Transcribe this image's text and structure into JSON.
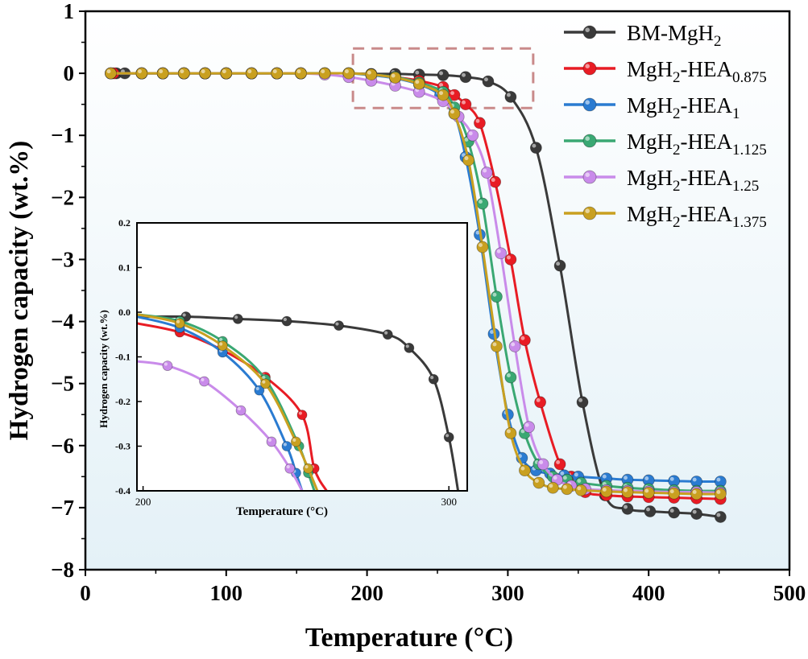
{
  "chart_data": [
    {
      "type": "line",
      "title": "",
      "xlabel": "Temperature (°C)",
      "ylabel": "Hydrogen capacity (wt.%)",
      "xlim": [
        0,
        500
      ],
      "ylim": [
        -8,
        1
      ],
      "xticks": [
        "0",
        "100",
        "200",
        "300",
        "400",
        "500"
      ],
      "yticks": [
        "1",
        "0",
        "−1",
        "−2",
        "−3",
        "−4",
        "−5",
        "−6",
        "−7",
        "−8"
      ],
      "grid": false,
      "legend_position": "top-right",
      "background_gradient": [
        "#ffffff",
        "#e4f1f7"
      ],
      "series": [
        {
          "name": "BM-MgH",
          "sub": "2",
          "name_tail": "",
          "tail_sub": "",
          "color": "#3a3a3a",
          "x": [
            22,
            28,
            40,
            55,
            70,
            85,
            100,
            118,
            136,
            153,
            170,
            187,
            203,
            220,
            237,
            254,
            270,
            286,
            302,
            320,
            337,
            353,
            369,
            385,
            401,
            418,
            434,
            451
          ],
          "y": [
            0,
            0,
            0,
            0,
            0,
            0,
            0,
            0,
            0,
            0,
            0,
            0,
            -0.01,
            -0.01,
            -0.02,
            -0.03,
            -0.06,
            -0.13,
            -0.38,
            -1.2,
            -3.1,
            -5.3,
            -6.8,
            -7.02,
            -7.06,
            -7.08,
            -7.1,
            -7.15
          ]
        },
        {
          "name": "MgH",
          "sub": "2",
          "name_tail": "-HEA",
          "tail_sub": "0.875",
          "color": "#e81c24",
          "x": [
            20,
            40,
            55,
            70,
            85,
            100,
            118,
            136,
            153,
            170,
            187,
            203,
            220,
            237,
            254,
            262,
            270,
            280,
            291,
            302,
            312,
            323,
            337,
            345,
            355,
            370,
            385,
            400,
            418,
            434,
            451
          ],
          "y": [
            0,
            0,
            0,
            0,
            0,
            0,
            0,
            0,
            0,
            0,
            0,
            -0.02,
            -0.06,
            -0.12,
            -0.22,
            -0.35,
            -0.5,
            -0.8,
            -1.75,
            -3.0,
            -4.3,
            -5.3,
            -6.3,
            -6.5,
            -6.75,
            -6.8,
            -6.82,
            -6.83,
            -6.84,
            -6.85,
            -6.86
          ]
        },
        {
          "name": "MgH",
          "sub": "2",
          "name_tail": "-HEA",
          "tail_sub": "1",
          "color": "#2a7bd1",
          "x": [
            18,
            40,
            55,
            70,
            85,
            100,
            118,
            136,
            153,
            170,
            187,
            203,
            220,
            237,
            252,
            262,
            270,
            280,
            290,
            300,
            310,
            320,
            330,
            340,
            350,
            370,
            385,
            400,
            418,
            434,
            451
          ],
          "y": [
            0,
            0,
            0,
            0,
            0,
            0,
            0,
            0,
            0,
            0,
            0,
            -0.03,
            -0.08,
            -0.18,
            -0.35,
            -0.65,
            -1.35,
            -2.6,
            -4.2,
            -5.5,
            -6.2,
            -6.4,
            -6.45,
            -6.48,
            -6.5,
            -6.53,
            -6.55,
            -6.56,
            -6.57,
            -6.58,
            -6.58
          ]
        },
        {
          "name": "MgH",
          "sub": "2",
          "name_tail": "-HEA",
          "tail_sub": "1.125",
          "color": "#3aa873",
          "x": [
            18,
            40,
            55,
            70,
            85,
            100,
            118,
            136,
            153,
            170,
            187,
            203,
            220,
            237,
            254,
            262,
            272,
            282,
            292,
            302,
            312,
            322,
            332,
            342,
            352,
            370,
            385,
            400,
            418,
            434,
            451
          ],
          "y": [
            0,
            0,
            0,
            0,
            0,
            0,
            0,
            0,
            0,
            0,
            0,
            -0.02,
            -0.06,
            -0.15,
            -0.3,
            -0.55,
            -1.1,
            -2.1,
            -3.6,
            -4.9,
            -5.8,
            -6.3,
            -6.5,
            -6.55,
            -6.6,
            -6.65,
            -6.68,
            -6.7,
            -6.72,
            -6.73,
            -6.73
          ]
        },
        {
          "name": "MgH",
          "sub": "2",
          "name_tail": "-HEA",
          "tail_sub": "1.25",
          "color": "#c98bea",
          "x": [
            18,
            40,
            55,
            70,
            85,
            100,
            118,
            136,
            153,
            170,
            187,
            203,
            220,
            237,
            254,
            265,
            275,
            285,
            295,
            305,
            315,
            325,
            335,
            345,
            355,
            370,
            385,
            400,
            418,
            434,
            451
          ],
          "y": [
            0,
            0,
            0,
            0,
            0,
            0,
            0,
            0,
            0,
            -0.02,
            -0.06,
            -0.12,
            -0.2,
            -0.3,
            -0.45,
            -0.7,
            -1.0,
            -1.6,
            -2.9,
            -4.4,
            -5.7,
            -6.3,
            -6.55,
            -6.65,
            -6.7,
            -6.72,
            -6.73,
            -6.74,
            -6.75,
            -6.75,
            -6.76
          ]
        },
        {
          "name": "MgH",
          "sub": "2",
          "name_tail": "-HEA",
          "tail_sub": "1.375",
          "color": "#c9a020",
          "x": [
            18,
            40,
            55,
            70,
            85,
            100,
            118,
            136,
            153,
            170,
            187,
            203,
            220,
            237,
            254,
            262,
            272,
            282,
            292,
            302,
            312,
            322,
            332,
            342,
            352,
            370,
            385,
            400,
            418,
            434,
            451
          ],
          "y": [
            0,
            0,
            0,
            0,
            0,
            0,
            0,
            0,
            0,
            0,
            0,
            -0.02,
            -0.07,
            -0.17,
            -0.35,
            -0.65,
            -1.4,
            -2.8,
            -4.4,
            -5.8,
            -6.4,
            -6.6,
            -6.68,
            -6.7,
            -6.72,
            -6.74,
            -6.75,
            -6.76,
            -6.77,
            -6.78,
            -6.78
          ]
        }
      ]
    },
    {
      "type": "line",
      "title": "",
      "xlabel": "Temperature (°C)",
      "ylabel": "Hydrogen capacity (wt.%)",
      "xlim": [
        198,
        306
      ],
      "ylim": [
        -0.4,
        0.2
      ],
      "xticks": [
        "200",
        "300"
      ],
      "yticks": [
        "0.2",
        "0.1",
        "0.0",
        "-0.1",
        "-0.2",
        "-0.3",
        "-0.4"
      ],
      "grid": false,
      "series": [
        {
          "name": "BM-MgH2",
          "color": "#3a3a3a",
          "x": [
            198,
            214,
            231,
            247,
            264,
            280,
            287,
            295,
            300,
            303
          ],
          "y": [
            -0.01,
            -0.01,
            -0.015,
            -0.02,
            -0.03,
            -0.05,
            -0.08,
            -0.15,
            -0.28,
            -0.4
          ]
        },
        {
          "name": "MgH2-HEA0.875",
          "color": "#e81c24",
          "x": [
            198,
            212,
            226,
            240,
            252,
            256,
            260
          ],
          "y": [
            -0.025,
            -0.045,
            -0.085,
            -0.145,
            -0.23,
            -0.35,
            -0.4
          ]
        },
        {
          "name": "MgH2-HEA1",
          "color": "#2a7bd1",
          "x": [
            198,
            212,
            226,
            238,
            247,
            250,
            252
          ],
          "y": [
            -0.01,
            -0.035,
            -0.09,
            -0.175,
            -0.3,
            -0.36,
            -0.4
          ]
        },
        {
          "name": "MgH2-HEA1.125",
          "color": "#3aa873",
          "x": [
            198,
            212,
            226,
            240,
            251,
            254,
            256
          ],
          "y": [
            -0.005,
            -0.02,
            -0.065,
            -0.15,
            -0.3,
            -0.36,
            -0.4
          ]
        },
        {
          "name": "MgH2-HEA1.25",
          "color": "#c98bea",
          "x": [
            198,
            208,
            220,
            232,
            242,
            248,
            252
          ],
          "y": [
            -0.11,
            -0.12,
            -0.155,
            -0.22,
            -0.29,
            -0.35,
            -0.4
          ]
        },
        {
          "name": "MgH2-HEA1.375",
          "color": "#c9a020",
          "x": [
            198,
            212,
            226,
            240,
            250,
            254,
            257
          ],
          "y": [
            -0.005,
            -0.025,
            -0.075,
            -0.16,
            -0.29,
            -0.35,
            -0.4
          ]
        }
      ]
    }
  ]
}
